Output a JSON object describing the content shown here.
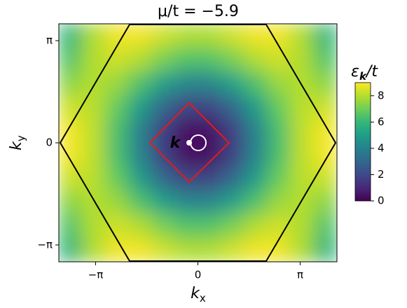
{
  "chart_data": {
    "type": "heatmap",
    "title": "μ/t = −5.9",
    "xlabel": {
      "text": "k",
      "subscript": "x"
    },
    "ylabel": {
      "text": "k",
      "subscript": "y"
    },
    "colorbar_label": {
      "text": "ε",
      "subscript": "k",
      "rest": "/t"
    },
    "annotation": "k",
    "xlim": [
      -4.27,
      4.27
    ],
    "ylim": [
      -3.66,
      3.66
    ],
    "xticks": [
      {
        "value": -3.14159,
        "label": "−π"
      },
      0,
      {
        "value": 3.14159,
        "label": "π"
      }
    ],
    "yticks": [
      {
        "value": -3.14159,
        "label": "−π"
      },
      0,
      {
        "value": 3.14159,
        "label": "π"
      }
    ],
    "clim": [
      0,
      9
    ],
    "cticks": [
      0,
      2,
      4,
      6,
      8
    ],
    "colormap": [
      "#440154",
      "#482878",
      "#3e4989",
      "#31688e",
      "#26828e",
      "#1f9e89",
      "#35b779",
      "#6ece58",
      "#b5de2b",
      "#fde725"
    ],
    "x": [
      -3.915,
      -3.203,
      -2.491,
      -1.78,
      -1.068,
      -0.356,
      0.356,
      1.068,
      1.78,
      2.491,
      3.203,
      3.915
    ],
    "y": [
      3.294,
      2.562,
      1.83,
      1.098,
      0.366,
      -0.366,
      -1.098,
      -1.83,
      -2.562,
      -3.294
    ],
    "z": [
      [
        5.96,
        7.88,
        8.82,
        8.83,
        8.34,
        7.9,
        7.9,
        8.34,
        8.83,
        8.82,
        7.88,
        5.96
      ],
      [
        6.5,
        7.92,
        8.36,
        7.94,
        7.12,
        6.5,
        6.5,
        7.12,
        7.94,
        8.36,
        7.92,
        6.5
      ],
      [
        7.39,
        7.99,
        7.61,
        6.45,
        5.08,
        4.18,
        4.18,
        5.08,
        6.45,
        7.61,
        7.99,
        7.39
      ],
      [
        8.29,
        8.07,
        6.85,
        4.96,
        3.04,
        1.84,
        1.84,
        3.04,
        4.96,
        6.85,
        8.07,
        8.29
      ],
      [
        8.85,
        8.11,
        6.38,
        4.03,
        1.76,
        0.39,
        0.39,
        1.76,
        4.03,
        6.38,
        8.11,
        8.85
      ],
      [
        8.85,
        8.11,
        6.38,
        4.03,
        1.76,
        0.39,
        0.39,
        1.76,
        4.03,
        6.38,
        8.11,
        8.85
      ],
      [
        8.29,
        8.07,
        6.85,
        4.96,
        3.04,
        1.84,
        1.84,
        3.04,
        4.96,
        6.85,
        8.07,
        8.29
      ],
      [
        7.39,
        7.99,
        7.61,
        6.45,
        5.08,
        4.18,
        4.18,
        5.08,
        6.45,
        7.61,
        7.99,
        7.39
      ],
      [
        6.5,
        7.92,
        8.36,
        7.94,
        7.12,
        6.5,
        6.5,
        7.12,
        7.94,
        8.36,
        7.92,
        6.5
      ],
      [
        5.96,
        7.88,
        8.82,
        8.83,
        8.34,
        7.9,
        7.9,
        8.34,
        8.83,
        8.82,
        7.88,
        5.96
      ]
    ]
  }
}
